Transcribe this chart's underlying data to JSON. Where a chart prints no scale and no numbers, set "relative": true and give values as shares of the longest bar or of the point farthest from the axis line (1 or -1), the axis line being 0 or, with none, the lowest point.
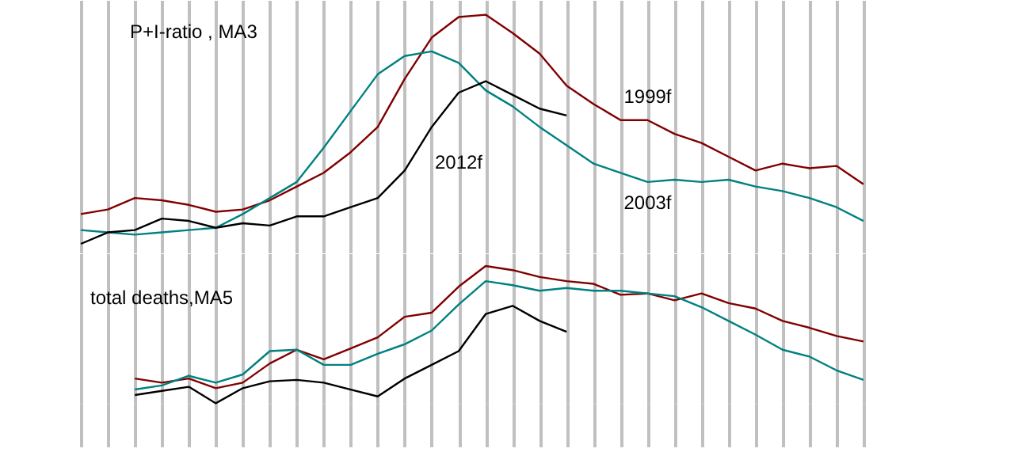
{
  "chart_data": [
    {
      "type": "line",
      "relative": true,
      "grid": "x",
      "annotations": [
        "P+I-ratio   , MA3"
      ],
      "categories": [
        null,
        null,
        null,
        null,
        null,
        null,
        null,
        null,
        null,
        null,
        null,
        null,
        null,
        null,
        null,
        null,
        null,
        null,
        null,
        null,
        null,
        null,
        null,
        null,
        null,
        null,
        null,
        null,
        null,
        null
      ],
      "series": [
        {
          "name": "1999f",
          "color": "#800000",
          "values": [
            0.13,
            0.15,
            0.2,
            0.19,
            0.17,
            0.14,
            0.15,
            0.19,
            0.25,
            0.31,
            0.4,
            0.51,
            0.72,
            0.9,
            0.99,
            1,
            0.92,
            0.83,
            0.69,
            0.61,
            0.54,
            0.54,
            0.48,
            0.44,
            0.38,
            0.32,
            0.35,
            0.33,
            0.34,
            0.26
          ]
        },
        {
          "name": "2003f",
          "color": "#008080",
          "values": [
            0.06,
            0.05,
            0.04,
            0.05,
            0.06,
            0.07,
            0.13,
            0.2,
            0.27,
            0.42,
            0.58,
            0.74,
            0.82,
            0.84,
            0.79,
            0.67,
            0.6,
            0.51,
            0.43,
            0.35,
            0.31,
            0.27,
            0.28,
            0.27,
            0.28,
            0.25,
            0.23,
            0.2,
            0.16,
            0.1
          ]
        },
        {
          "name": "2012f",
          "color": "#000000",
          "values": [
            0,
            0.05,
            0.06,
            0.11,
            0.1,
            0.07,
            0.09,
            0.08,
            0.12,
            0.12,
            0.16,
            0.2,
            0.32,
            0.51,
            0.66,
            0.71,
            0.65,
            0.59,
            0.56,
            null,
            null,
            null,
            null,
            null,
            null,
            null,
            null,
            null,
            null,
            null
          ]
        }
      ]
    },
    {
      "type": "line",
      "relative": true,
      "grid": "x",
      "annotations": [
        "total deaths,MA5"
      ],
      "categories": [
        null,
        null,
        null,
        null,
        null,
        null,
        null,
        null,
        null,
        null,
        null,
        null,
        null,
        null,
        null,
        null,
        null,
        null,
        null,
        null,
        null,
        null,
        null,
        null,
        null,
        null,
        null,
        null,
        null,
        null
      ],
      "series": [
        {
          "color": "#800000",
          "values": [
            null,
            null,
            0.18,
            0.15,
            0.18,
            0.11,
            0.15,
            0.29,
            0.39,
            0.32,
            0.4,
            0.48,
            0.63,
            0.66,
            0.85,
            1,
            0.97,
            0.92,
            0.89,
            0.87,
            0.79,
            0.8,
            0.75,
            0.8,
            0.73,
            0.69,
            0.6,
            0.55,
            0.49,
            0.45
          ]
        },
        {
          "color": "#008080",
          "values": [
            null,
            null,
            0.1,
            0.13,
            0.2,
            0.15,
            0.21,
            0.38,
            0.39,
            0.28,
            0.28,
            0.36,
            0.43,
            0.53,
            0.72,
            0.89,
            0.86,
            0.82,
            0.84,
            0.82,
            0.82,
            0.8,
            0.78,
            0.7,
            0.6,
            0.5,
            0.39,
            0.34,
            0.24,
            0.17
          ]
        },
        {
          "color": "#000000",
          "values": [
            null,
            null,
            0.06,
            0.09,
            0.12,
            0,
            0.11,
            0.16,
            0.17,
            0.15,
            0.1,
            0.05,
            0.18,
            0.28,
            0.38,
            0.65,
            0.71,
            0.6,
            0.52,
            null,
            null,
            null,
            null,
            null,
            null,
            null,
            null,
            null,
            null,
            null
          ]
        }
      ]
    }
  ]
}
